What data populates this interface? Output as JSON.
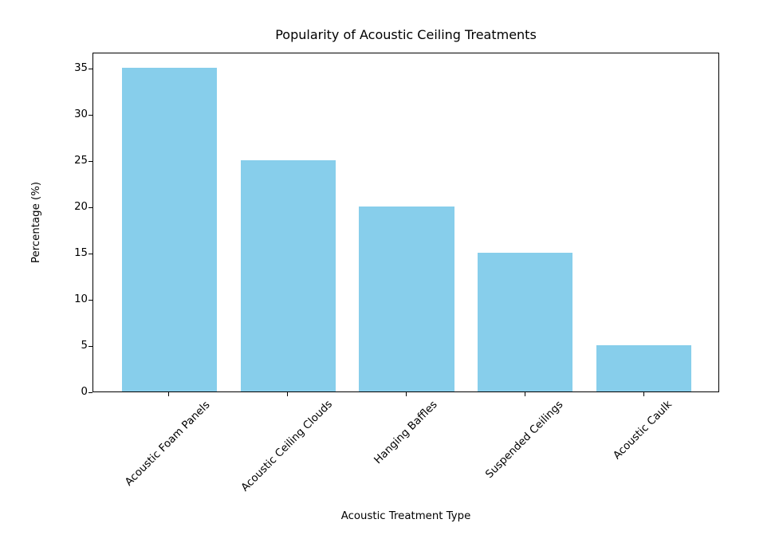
{
  "chart_data": {
    "type": "bar",
    "title": "Popularity of Acoustic Ceiling Treatments",
    "xlabel": "Acoustic Treatment Type",
    "ylabel": "Percentage (%)",
    "categories": [
      "Acoustic Foam Panels",
      "Acoustic Ceiling Clouds",
      "Hanging Baffles",
      "Suspended Ceilings",
      "Acoustic Caulk"
    ],
    "values": [
      35,
      25,
      20,
      15,
      5
    ],
    "yticks": [
      0,
      5,
      10,
      15,
      20,
      25,
      30,
      35
    ],
    "ylim": [
      0,
      36.75
    ],
    "bar_color": "#87ceeb",
    "background_color": "#ffffff",
    "xtick_rotation_deg": 45,
    "grid": false,
    "legend": false
  }
}
